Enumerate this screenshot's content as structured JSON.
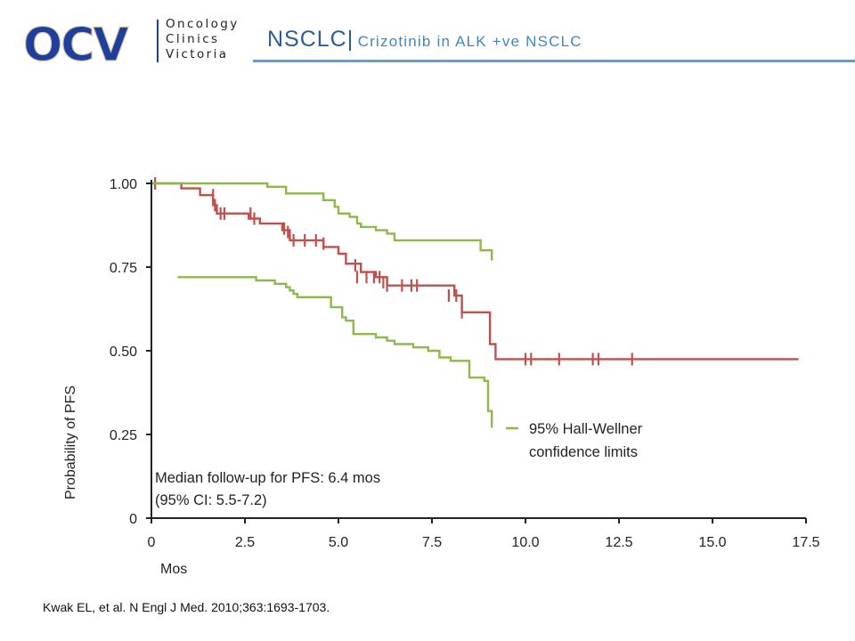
{
  "header": {
    "logo_text": "OCV",
    "logo_lines": [
      "Oncology",
      "Clinics",
      "Victoria"
    ],
    "title_main": "NSCLC|",
    "title_sub": "Crizotinib  in ALK +ve NSCLC"
  },
  "chart_data": {
    "type": "line",
    "xlabel": "Mos",
    "ylabel": "Probability of PFS",
    "xlim": [
      0,
      17.5
    ],
    "ylim": [
      0,
      1.0
    ],
    "x_ticks": [
      "0",
      "2.5",
      "5.0",
      "7.5",
      "10.0",
      "12.5",
      "15.0",
      "17.5"
    ],
    "y_ticks": [
      "0",
      "0.25",
      "0.50",
      "0.75",
      "1.00"
    ],
    "grid": false,
    "colors": {
      "estimate": "#c0504d",
      "confidence": "#8db84a"
    },
    "series": [
      {
        "role": "estimate",
        "x": [
          0,
          0.65,
          0.8,
          1.3,
          1.65,
          1.75,
          2.6,
          2.9,
          3.5,
          3.7,
          4.6,
          5.0,
          5.2,
          5.6,
          6.0,
          6.3,
          6.9,
          7.6,
          8.1,
          8.3,
          8.95,
          9.05,
          9.2,
          17.3
        ],
        "y": [
          1.0,
          1.0,
          0.985,
          0.965,
          0.935,
          0.91,
          0.895,
          0.88,
          0.86,
          0.83,
          0.81,
          0.79,
          0.76,
          0.735,
          0.72,
          0.695,
          0.695,
          0.695,
          0.665,
          0.615,
          0.615,
          0.52,
          0.475,
          0.475
        ],
        "censored": [
          [
            0.1,
            1.0
          ],
          [
            1.65,
            0.965
          ],
          [
            1.7,
            0.935
          ],
          [
            1.85,
            0.91
          ],
          [
            1.95,
            0.91
          ],
          [
            2.65,
            0.91
          ],
          [
            2.75,
            0.895
          ],
          [
            3.55,
            0.865
          ],
          [
            3.65,
            0.855
          ],
          [
            3.8,
            0.83
          ],
          [
            4.1,
            0.83
          ],
          [
            4.4,
            0.83
          ],
          [
            4.6,
            0.82
          ],
          [
            5.45,
            0.755
          ],
          [
            5.5,
            0.72
          ],
          [
            5.75,
            0.72
          ],
          [
            5.95,
            0.72
          ],
          [
            6.1,
            0.72
          ],
          [
            6.2,
            0.705
          ],
          [
            6.3,
            0.695
          ],
          [
            6.7,
            0.695
          ],
          [
            6.95,
            0.695
          ],
          [
            7.1,
            0.695
          ],
          [
            7.95,
            0.665
          ],
          [
            8.15,
            0.665
          ],
          [
            8.3,
            0.615
          ],
          [
            10.0,
            0.475
          ],
          [
            10.15,
            0.475
          ],
          [
            10.9,
            0.475
          ],
          [
            11.8,
            0.475
          ],
          [
            11.95,
            0.475
          ],
          [
            12.85,
            0.475
          ]
        ]
      },
      {
        "role": "upper",
        "x": [
          0,
          2.7,
          3.1,
          3.6,
          4.6,
          4.9,
          5.0,
          5.3,
          5.5,
          5.6,
          6.0,
          6.3,
          6.5,
          6.9,
          7.3,
          7.6,
          7.8,
          8.1,
          8.3,
          8.5,
          8.8,
          9.0,
          9.1
        ],
        "y": [
          1.0,
          1.0,
          0.99,
          0.97,
          0.95,
          0.93,
          0.91,
          0.9,
          0.88,
          0.87,
          0.86,
          0.85,
          0.83,
          0.83,
          0.83,
          0.83,
          0.83,
          0.83,
          0.83,
          0.83,
          0.8,
          0.8,
          0.77
        ]
      },
      {
        "role": "lower",
        "x": [
          0.7,
          1.9,
          2.8,
          3.3,
          3.6,
          3.7,
          3.8,
          3.9,
          4.1,
          4.8,
          5.1,
          5.2,
          5.4,
          6.0,
          6.3,
          6.5,
          7.0,
          7.4,
          7.7,
          8.0,
          8.3,
          8.5,
          8.7,
          8.9,
          9.0,
          9.1
        ],
        "y": [
          0.72,
          0.72,
          0.71,
          0.7,
          0.69,
          0.68,
          0.67,
          0.66,
          0.66,
          0.63,
          0.6,
          0.59,
          0.55,
          0.54,
          0.53,
          0.52,
          0.51,
          0.5,
          0.48,
          0.47,
          0.47,
          0.42,
          0.42,
          0.41,
          0.32,
          0.27
        ]
      }
    ],
    "legend": {
      "label_line1": "95% Hall-Wellner",
      "label_line2": "confidence limits",
      "placement": "lower-right"
    },
    "annotation": {
      "line1": "Median follow-up for PFS: 6.4 mos",
      "line2": "(95% CI: 5.5-7.2)"
    }
  },
  "footer": {
    "source": "Kwak EL, et al. N Engl J Med. 2010;363:1693-1703."
  }
}
